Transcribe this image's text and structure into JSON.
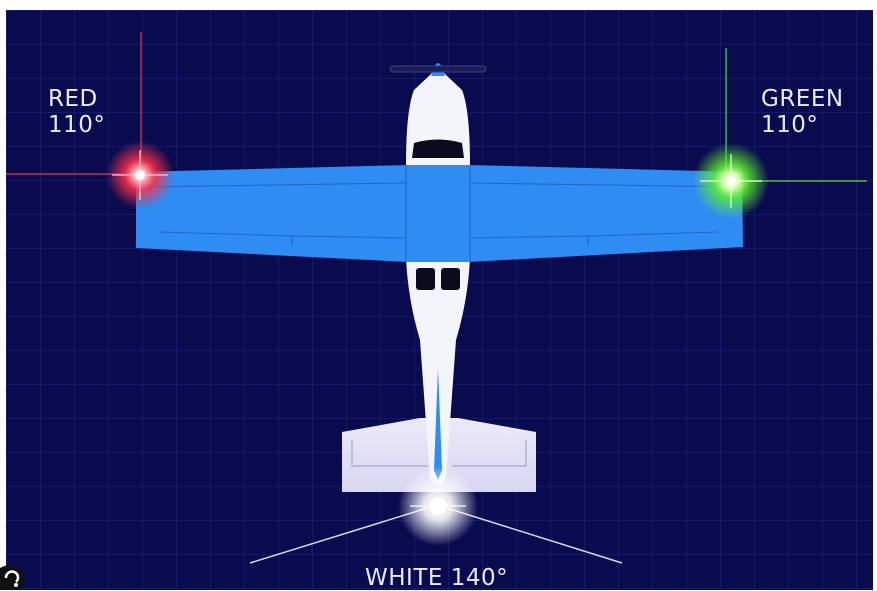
{
  "labels": {
    "red": {
      "name": "RED",
      "angle": "110°"
    },
    "green": {
      "name": "GREEN",
      "angle": "110°"
    },
    "white": {
      "text": "WHITE 140°"
    }
  },
  "colors": {
    "background": "#0a0b4e",
    "grid": "#1d2a78",
    "wing": "#2f8cf2",
    "fuselage": "#f4f4fb",
    "red_light": "#ff3146",
    "green_light": "#5cf030",
    "white_light": "#ffffff"
  },
  "icons": {
    "corner": "lens-icon"
  }
}
